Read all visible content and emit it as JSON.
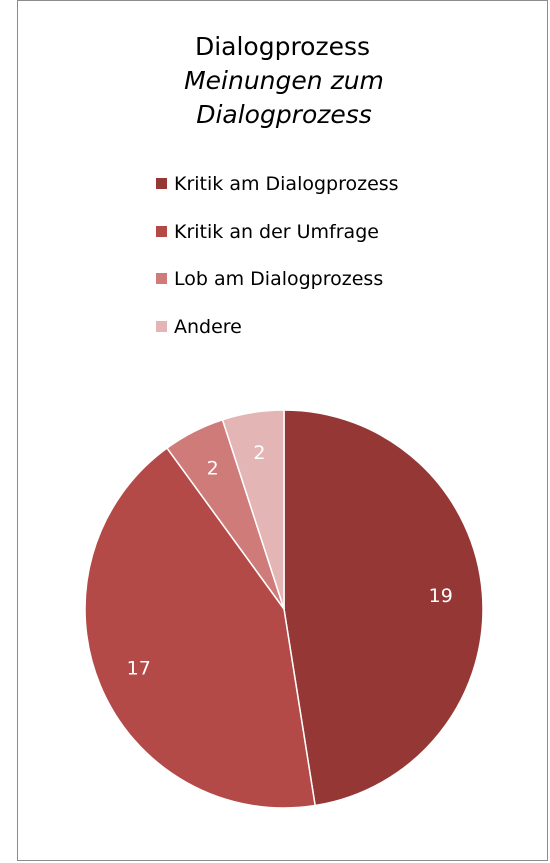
{
  "chart_data": {
    "type": "pie",
    "title": "Dialogprozess",
    "subtitle": "Meinungen zum Dialogprozess",
    "categories": [
      "Kritik am Dialogprozess",
      "Kritik an der Umfrage",
      "Lob am Dialogprozess",
      "Andere"
    ],
    "values": [
      19,
      17,
      2,
      2
    ],
    "colors": [
      "#953735",
      "#b34a47",
      "#cf7b79",
      "#e3b5b4"
    ],
    "legend": "top"
  }
}
